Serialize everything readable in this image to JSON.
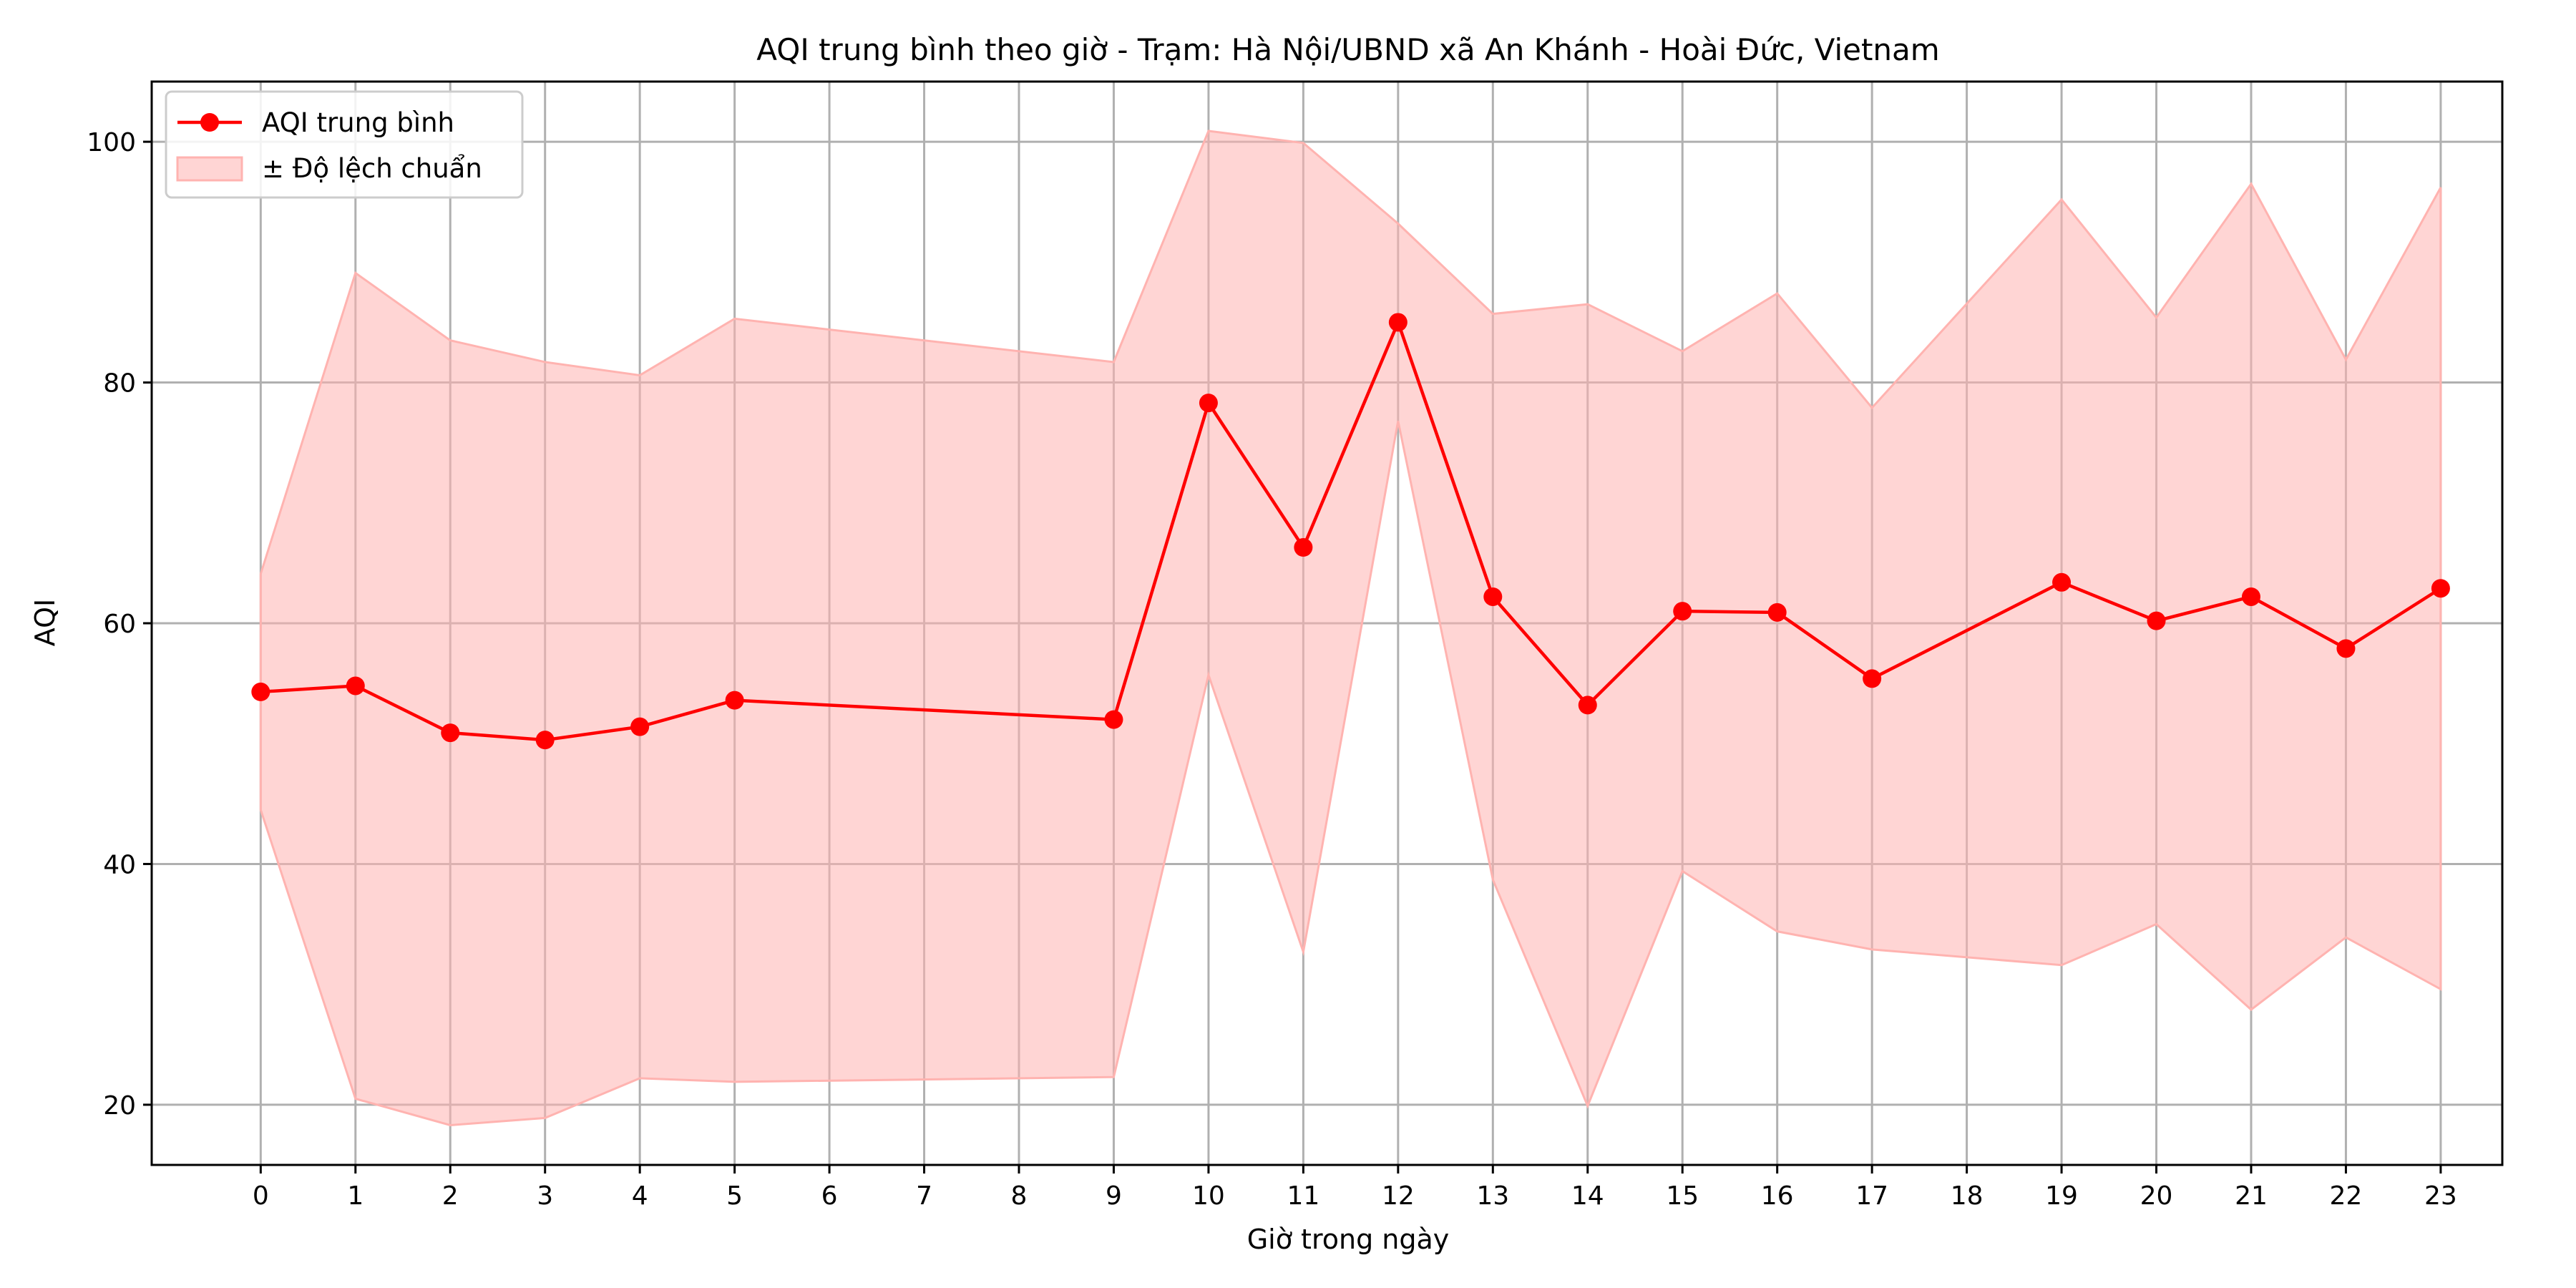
{
  "chart_data": {
    "type": "line",
    "title": "AQI trung bình theo giờ - Trạm: Hà Nội/UBND xã An Khánh - Hoài Đức, Vietnam",
    "xlabel": "Giờ trong ngày",
    "ylabel": "AQI",
    "x_ticks": [
      0,
      1,
      2,
      3,
      4,
      5,
      6,
      7,
      8,
      9,
      10,
      11,
      12,
      13,
      14,
      15,
      16,
      17,
      18,
      19,
      20,
      21,
      22,
      23
    ],
    "y_ticks": [
      20,
      40,
      60,
      80,
      100
    ],
    "xlim": [
      -1.15,
      23.65
    ],
    "ylim": [
      15,
      105
    ],
    "grid": true,
    "legend_position": "top-left",
    "colors": {
      "line": "#ff0000",
      "band": "#ffb3b0"
    },
    "series": [
      {
        "name": "AQI trung bình",
        "x": [
          0,
          1,
          2,
          3,
          4,
          5,
          9,
          10,
          11,
          12,
          13,
          14,
          15,
          16,
          17,
          19,
          20,
          21,
          22,
          23
        ],
        "y": [
          54.3,
          54.8,
          50.9,
          50.3,
          51.4,
          53.6,
          52.0,
          78.3,
          66.3,
          85.0,
          62.2,
          53.2,
          61.0,
          60.9,
          55.4,
          63.4,
          60.2,
          62.2,
          57.9,
          62.9
        ]
      }
    ],
    "band": {
      "name": "± Độ lệch chuẩn",
      "x": [
        0,
        1,
        2,
        3,
        4,
        5,
        9,
        10,
        11,
        12,
        13,
        14,
        15,
        16,
        17,
        19,
        20,
        21,
        22,
        23
      ],
      "upper": [
        64.1,
        89.1,
        83.5,
        81.7,
        80.6,
        85.3,
        81.7,
        100.9,
        99.9,
        93.2,
        85.7,
        86.5,
        82.6,
        87.4,
        77.9,
        95.2,
        85.4,
        96.5,
        81.9,
        96.2
      ],
      "lower": [
        44.5,
        20.5,
        18.3,
        18.9,
        22.2,
        21.9,
        22.3,
        55.7,
        32.7,
        76.8,
        38.7,
        19.9,
        39.4,
        34.4,
        32.9,
        31.6,
        35.0,
        27.9,
        33.9,
        29.6
      ]
    }
  }
}
